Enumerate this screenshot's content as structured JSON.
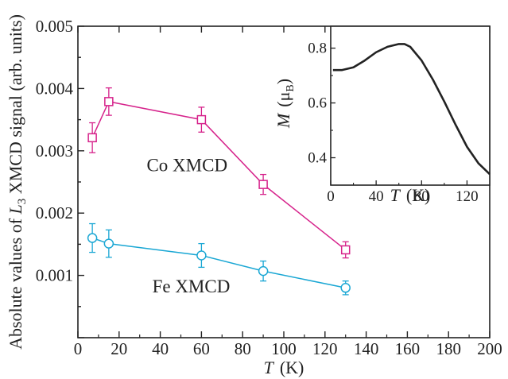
{
  "chart_data": [
    {
      "type": "line",
      "main": true,
      "xlabel": "T (K)",
      "xlabel_parts": {
        "var": "T",
        "unit": "(K)"
      },
      "ylabel": "Absolute values of L3 XMCD signal (arb. units)",
      "ylabel_parts": {
        "pre": "Absolute values of ",
        "var": "L",
        "sub": "3",
        "post": " XMCD signal (arb. units)"
      },
      "xlim": [
        0,
        200
      ],
      "ylim": [
        0,
        0.005
      ],
      "xticks": [
        0,
        20,
        40,
        60,
        80,
        100,
        120,
        140,
        160,
        180,
        200
      ],
      "xtick_labels": [
        "0",
        "20",
        "40",
        "60",
        "80",
        "100",
        "120",
        "140",
        "160",
        "180",
        "200"
      ],
      "yticks": [
        0.001,
        0.002,
        0.003,
        0.004,
        0.005
      ],
      "ytick_labels": [
        "0.001",
        "0.002",
        "0.003",
        "0.004",
        "0.005"
      ],
      "series": [
        {
          "label": "Co XMCD",
          "color": "#d6228b",
          "marker": "square",
          "x": [
            7,
            15,
            60,
            90,
            130
          ],
          "y": [
            0.00321,
            0.00379,
            0.0035,
            0.00246,
            0.00141
          ],
          "err": [
            0.00024,
            0.00022,
            0.0002,
            0.00016,
            0.00013
          ]
        },
        {
          "label": "Fe XMCD",
          "color": "#1aa7d4",
          "marker": "circle",
          "x": [
            7,
            15,
            60,
            90,
            130
          ],
          "y": [
            0.0016,
            0.00151,
            0.00132,
            0.00107,
            0.0008
          ],
          "err": [
            0.00023,
            0.00022,
            0.00019,
            0.00016,
            0.00011
          ]
        }
      ],
      "annotations": [
        {
          "text": "Co XMCD",
          "x": 53,
          "y": 0.00267
        },
        {
          "text": "Fe XMCD",
          "x": 55,
          "y": 0.00073
        }
      ]
    },
    {
      "type": "line",
      "inset": true,
      "xlabel": "T (K)",
      "xlabel_parts": {
        "var": "T",
        "unit": "(K)"
      },
      "ylabel": "M (μB)",
      "ylabel_parts": {
        "var": "M",
        "unit_pre": "(μ",
        "sub": "B",
        "unit_post": ")"
      },
      "xlim": [
        0,
        140
      ],
      "ylim": [
        0.3,
        0.88
      ],
      "xticks": [
        0,
        40,
        80,
        120
      ],
      "xtick_labels": [
        "0",
        "40",
        "80",
        "120"
      ],
      "yticks": [
        0.4,
        0.6,
        0.8
      ],
      "ytick_labels": [
        "0.4",
        "0.6",
        "0.8"
      ],
      "series": [
        {
          "color": "#222222",
          "x": [
            2,
            10,
            20,
            30,
            40,
            50,
            60,
            65,
            70,
            80,
            90,
            100,
            110,
            120,
            130,
            140
          ],
          "y": [
            0.72,
            0.72,
            0.73,
            0.755,
            0.785,
            0.805,
            0.815,
            0.815,
            0.805,
            0.755,
            0.685,
            0.605,
            0.52,
            0.44,
            0.38,
            0.34
          ]
        }
      ]
    }
  ]
}
